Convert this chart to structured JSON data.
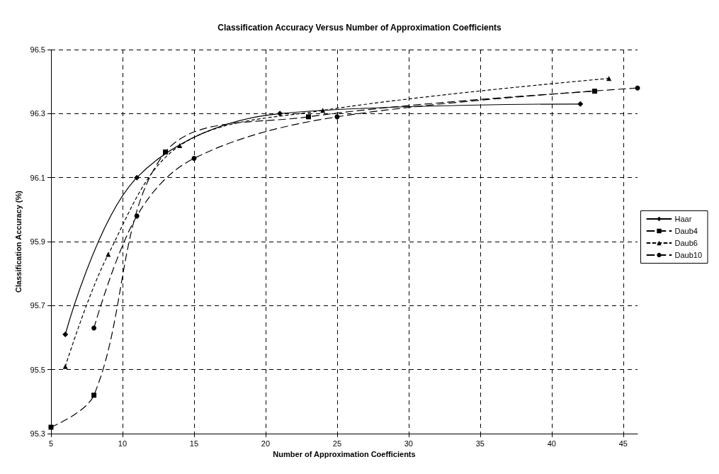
{
  "chart_data": {
    "type": "line",
    "title": "Classification Accuracy Versus Number of Approximation Coefficients",
    "xlabel": "Number of Approximation Coefficients",
    "ylabel": "Classification Accuracy (%)",
    "series": [
      {
        "name": "Haar",
        "color": "#000000",
        "marker": "diamond",
        "line_style": "solid",
        "x": [
          6,
          11,
          21,
          42
        ],
        "values": [
          95.61,
          96.1,
          96.3,
          96.33
        ]
      },
      {
        "name": "Daub4",
        "color": "#000000",
        "marker": "square",
        "line_style": "dashed",
        "x": [
          5,
          8,
          13,
          23,
          43
        ],
        "values": [
          95.32,
          95.42,
          96.18,
          96.29,
          96.37
        ]
      },
      {
        "name": "Daub6",
        "color": "#000000",
        "marker": "triangle",
        "line_style": "dotted",
        "x": [
          6,
          9,
          14,
          24,
          44
        ],
        "values": [
          95.51,
          95.86,
          96.2,
          96.31,
          96.41
        ]
      },
      {
        "name": "Daub10",
        "color": "#000000",
        "marker": "circle",
        "line_style": "dashed",
        "x": [
          8,
          11,
          15,
          25,
          46
        ],
        "values": [
          95.63,
          95.98,
          96.16,
          96.29,
          96.38
        ]
      }
    ],
    "xlim": [
      5,
      46
    ],
    "xticks": [
      5,
      10,
      15,
      20,
      25,
      30,
      35,
      40,
      45
    ],
    "ylim": [
      95.3,
      96.5
    ],
    "yticks": [
      95.3,
      95.5,
      95.7,
      95.9,
      96.1,
      96.3,
      96.5
    ],
    "grid": true,
    "legend": "right"
  }
}
